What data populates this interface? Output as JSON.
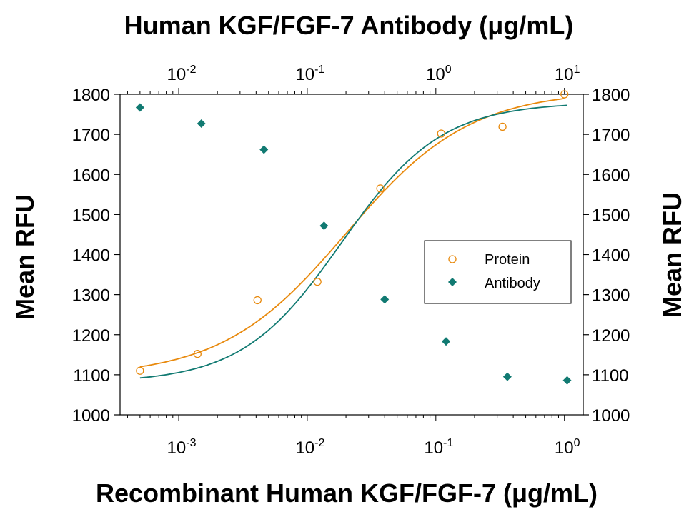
{
  "chart_data": {
    "type": "scatter",
    "title_top_axis": "Human KGF/FGF-7 Antibody (μg/mL)",
    "xlabel": "Recombinant Human KGF/FGF-7 (μg/mL)",
    "ylabel_left": "Mean RFU",
    "ylabel_right": "Mean RFU",
    "x_scale": "log",
    "xlim": [
      0.00035,
      1.4
    ],
    "x2lim": [
      0.0035,
      14
    ],
    "ylim": [
      1000,
      1800
    ],
    "y2lim": [
      1000,
      1800
    ],
    "y_ticks": [
      1000,
      1100,
      1200,
      1300,
      1400,
      1500,
      1600,
      1700,
      1800
    ],
    "y2_ticks": [
      1000,
      1100,
      1200,
      1300,
      1400,
      1500,
      1600,
      1700,
      1800
    ],
    "x_ticks": [
      {
        "value": 0.001,
        "base": "10",
        "exp": "-3"
      },
      {
        "value": 0.01,
        "base": "10",
        "exp": "-2"
      },
      {
        "value": 0.1,
        "base": "10",
        "exp": "-1"
      },
      {
        "value": 1,
        "base": "10",
        "exp": "0"
      }
    ],
    "x2_ticks": [
      {
        "value": 0.01,
        "base": "10",
        "exp": "-2"
      },
      {
        "value": 0.1,
        "base": "10",
        "exp": "-1"
      },
      {
        "value": 1,
        "base": "10",
        "exp": "0"
      },
      {
        "value": 10,
        "base": "10",
        "exp": "1"
      }
    ],
    "legend": {
      "position": "right"
    },
    "series": [
      {
        "name": "Protein",
        "axis": "bottom-left",
        "marker": "open-circle",
        "color": "#E8890C",
        "x": [
          0.0005,
          0.0014,
          0.0041,
          0.012,
          0.037,
          0.11,
          0.33,
          1.0
        ],
        "y": [
          1110,
          1152,
          1286,
          1332,
          1565,
          1702,
          1719,
          1800
        ],
        "fit": {
          "bottom": 1095,
          "top": 1810,
          "ec50": 0.02,
          "hill": 0.9
        }
      },
      {
        "name": "Antibody",
        "axis": "top-right",
        "marker": "filled-diamond",
        "color": "#117A72",
        "x": [
          0.005,
          0.015,
          0.046,
          0.135,
          0.4,
          1.2,
          3.6,
          10.5
        ],
        "y": [
          1767,
          1727,
          1662,
          1472,
          1288,
          1183,
          1095,
          1086
        ],
        "fit": {
          "bottom": 1080,
          "top": 1780,
          "ec50": 0.185,
          "hill": 1.12
        }
      }
    ]
  }
}
